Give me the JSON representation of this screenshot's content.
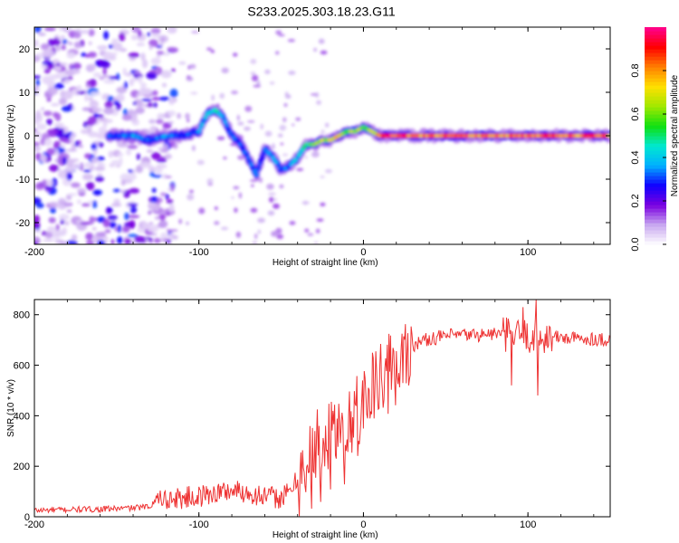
{
  "figure": {
    "title": "S233.2025.303.18.23.G11"
  },
  "chart_data": [
    {
      "type": "heatmap",
      "title": "S233.2025.303.18.23.G11",
      "xlabel": "Height of straight line (km)",
      "ylabel": "Frequency (Hz)",
      "xlim": [
        -200,
        150
      ],
      "ylim": [
        -25,
        25
      ],
      "x_ticks": [
        -200,
        -100,
        0,
        100
      ],
      "x_tick_labels": [
        "-200",
        "-100",
        "0",
        "100"
      ],
      "y_ticks": [
        20,
        10,
        0,
        -10,
        -20
      ],
      "y_tick_labels": [
        "20",
        "10",
        "0",
        "-10",
        "-20"
      ],
      "colorbar": {
        "label": "Normalized spectral amplitude",
        "range": [
          0,
          1
        ],
        "ticks": [
          0.0,
          0.2,
          0.4,
          0.6,
          0.8
        ],
        "tick_labels": [
          "0.0",
          "0.2",
          "0.4",
          "0.6",
          "0.8"
        ],
        "stops": [
          "#ffffff",
          "#c8a8f0",
          "#7a00e0",
          "#1000ff",
          "#00b0ff",
          "#00e8d0",
          "#10e010",
          "#a0e800",
          "#ffe000",
          "#ff8000",
          "#ff0000",
          "#ff0090"
        ]
      },
      "ridge": {
        "x": [
          -155,
          -140,
          -130,
          -120,
          -110,
          -100,
          -95,
          -90,
          -85,
          -80,
          -75,
          -70,
          -65,
          -60,
          -55,
          -50,
          -45,
          -40,
          -35,
          -30,
          -25,
          -20,
          -15,
          -10,
          -5,
          0,
          5,
          10,
          20,
          40,
          60,
          80,
          100,
          120,
          150
        ],
        "y": [
          0,
          0,
          -1,
          0,
          0,
          1,
          5,
          6,
          4,
          0,
          -2,
          -5,
          -9,
          -3,
          -5,
          -8,
          -7,
          -5,
          -2,
          -2,
          -1,
          -1,
          0,
          1,
          1,
          2,
          1,
          0,
          0,
          0,
          0,
          0,
          0,
          0,
          0
        ],
        "amplitude": [
          0.3,
          0.35,
          0.3,
          0.35,
          0.3,
          0.35,
          0.4,
          0.45,
          0.35,
          0.3,
          0.3,
          0.35,
          0.3,
          0.3,
          0.35,
          0.3,
          0.35,
          0.4,
          0.5,
          0.6,
          0.65,
          0.7,
          0.7,
          0.6,
          0.65,
          0.6,
          0.6,
          0.85,
          0.9,
          0.8,
          0.85,
          0.8,
          0.85,
          0.85,
          0.8
        ]
      },
      "noise_region_x": [
        -200,
        -130
      ]
    },
    {
      "type": "line",
      "xlabel": "Height of straight line (km)",
      "ylabel": "SNR (10 * v/v)",
      "xlim": [
        -200,
        150
      ],
      "ylim": [
        0,
        860
      ],
      "x_ticks": [
        -200,
        -100,
        0,
        100
      ],
      "x_tick_labels": [
        "-200",
        "-100",
        "0",
        "100"
      ],
      "y_ticks": [
        0,
        200,
        400,
        600,
        800
      ],
      "y_tick_labels": [
        "0",
        "200",
        "400",
        "600",
        "800"
      ],
      "line_color": "#ee3333",
      "series": [
        {
          "name": "SNR",
          "x": [
            -200,
            -180,
            -160,
            -140,
            -130,
            -125,
            -120,
            -110,
            -100,
            -90,
            -80,
            -70,
            -60,
            -50,
            -45,
            -40,
            -35,
            -30,
            -25,
            -20,
            -15,
            -10,
            -5,
            0,
            5,
            10,
            15,
            20,
            25,
            30,
            40,
            50,
            60,
            70,
            80,
            90,
            100,
            110,
            120,
            130,
            140,
            150
          ],
          "y": [
            25,
            28,
            30,
            35,
            40,
            80,
            70,
            75,
            80,
            95,
            105,
            95,
            80,
            75,
            95,
            150,
            210,
            260,
            320,
            340,
            330,
            380,
            420,
            450,
            500,
            540,
            580,
            620,
            650,
            680,
            705,
            715,
            720,
            720,
            725,
            720,
            715,
            712,
            710,
            705,
            705,
            700
          ]
        }
      ],
      "notable_spikes": [
        {
          "x": 97,
          "y": 830
        },
        {
          "x": 105,
          "y": 860
        },
        {
          "x": 90,
          "y": 520
        },
        {
          "x": 106,
          "y": 480
        }
      ]
    }
  ]
}
